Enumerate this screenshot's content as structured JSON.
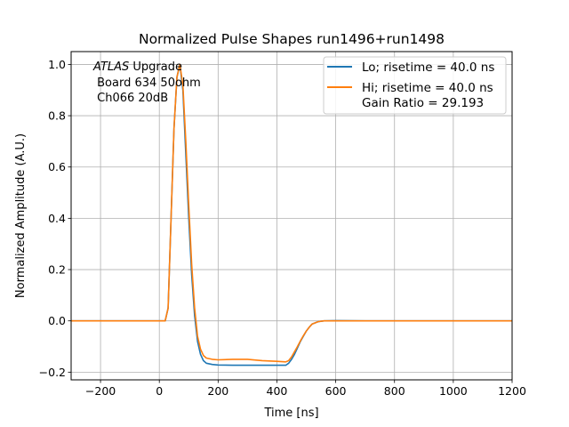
{
  "chart_data": {
    "type": "line",
    "title": "Normalized Pulse Shapes run1496+run1498",
    "xlabel": "Time [ns]",
    "ylabel": "Normalized Amplitude (A.U.)",
    "xlim": [
      -300,
      1200
    ],
    "ylim": [
      -0.23,
      1.05
    ],
    "grid": true,
    "legend_location": "top-right",
    "x_ticks": [
      -200,
      0,
      200,
      400,
      600,
      800,
      1000,
      1200
    ],
    "x_tick_labels": [
      "−200",
      "0",
      "200",
      "400",
      "600",
      "800",
      "1000",
      "1200"
    ],
    "y_ticks": [
      -0.2,
      0.0,
      0.2,
      0.4,
      0.6,
      0.8,
      1.0
    ],
    "y_tick_labels": [
      "−0.2",
      "0.0",
      "0.2",
      "0.4",
      "0.6",
      "0.8",
      "1.0"
    ],
    "annotation": {
      "atlas": "ATLAS",
      "line1_rest": " Upgrade",
      "line2": " Board 634 50ohm",
      "line3": " Ch066 20dB"
    },
    "series": [
      {
        "name": "Lo; risetime = 40.0 ns",
        "color": "#1f77b4",
        "x": [
          -300,
          0,
          20,
          30,
          40,
          50,
          60,
          70,
          80,
          90,
          100,
          110,
          120,
          130,
          140,
          150,
          160,
          180,
          200,
          250,
          300,
          350,
          400,
          430,
          440,
          450,
          460,
          470,
          480,
          490,
          500,
          510,
          520,
          540,
          560,
          600,
          700,
          800,
          900,
          1000,
          1100,
          1200
        ],
        "y": [
          0.0,
          0.0,
          0.0,
          0.05,
          0.4,
          0.75,
          0.95,
          1.0,
          0.9,
          0.65,
          0.4,
          0.18,
          0.02,
          -0.08,
          -0.13,
          -0.155,
          -0.165,
          -0.17,
          -0.172,
          -0.173,
          -0.173,
          -0.173,
          -0.173,
          -0.173,
          -0.165,
          -0.15,
          -0.13,
          -0.105,
          -0.08,
          -0.06,
          -0.04,
          -0.025,
          -0.012,
          -0.003,
          0.0,
          0.001,
          0.0,
          0.0,
          0.0,
          0.0,
          0.0,
          0.0
        ]
      },
      {
        "name": "Hi; risetime = 40.0 ns\n Gain Ratio = 29.193",
        "color": "#ff7f0e",
        "x": [
          -300,
          0,
          20,
          30,
          40,
          50,
          60,
          70,
          80,
          90,
          100,
          110,
          120,
          130,
          140,
          150,
          160,
          180,
          200,
          250,
          300,
          350,
          400,
          430,
          440,
          450,
          460,
          470,
          480,
          490,
          500,
          510,
          520,
          540,
          560,
          600,
          700,
          800,
          900,
          1000,
          1100,
          1200
        ],
        "y": [
          0.0,
          0.0,
          0.0,
          0.05,
          0.4,
          0.75,
          0.95,
          1.0,
          0.92,
          0.7,
          0.45,
          0.22,
          0.05,
          -0.06,
          -0.11,
          -0.135,
          -0.145,
          -0.15,
          -0.152,
          -0.15,
          -0.15,
          -0.155,
          -0.158,
          -0.16,
          -0.155,
          -0.14,
          -0.12,
          -0.1,
          -0.078,
          -0.058,
          -0.04,
          -0.025,
          -0.012,
          -0.003,
          0.0,
          0.0,
          0.0,
          0.0,
          0.0,
          0.0,
          0.0,
          0.0
        ]
      }
    ]
  }
}
